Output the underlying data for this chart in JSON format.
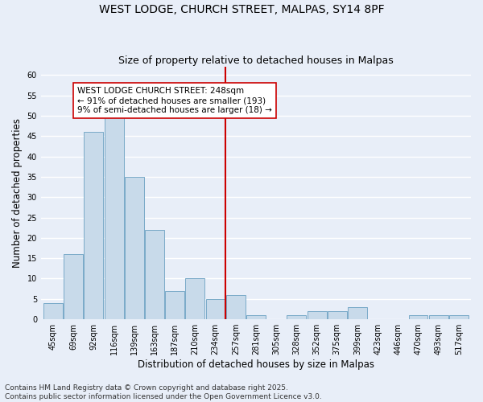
{
  "title1": "WEST LODGE, CHURCH STREET, MALPAS, SY14 8PF",
  "title2": "Size of property relative to detached houses in Malpas",
  "xlabel": "Distribution of detached houses by size in Malpas",
  "ylabel": "Number of detached properties",
  "bin_labels": [
    "45sqm",
    "69sqm",
    "92sqm",
    "116sqm",
    "139sqm",
    "163sqm",
    "187sqm",
    "210sqm",
    "234sqm",
    "257sqm",
    "281sqm",
    "305sqm",
    "328sqm",
    "352sqm",
    "375sqm",
    "399sqm",
    "423sqm",
    "446sqm",
    "470sqm",
    "493sqm",
    "517sqm"
  ],
  "values": [
    4,
    16,
    46,
    50,
    35,
    22,
    7,
    10,
    5,
    6,
    1,
    0,
    1,
    2,
    2,
    3,
    0,
    0,
    1,
    1,
    1
  ],
  "bar_color": "#c8daea",
  "bar_edge_color": "#7aaac8",
  "redline_x": 8.5,
  "annotation_text": "WEST LODGE CHURCH STREET: 248sqm\n← 91% of detached houses are smaller (193)\n9% of semi-detached houses are larger (18) →",
  "annotation_box_color": "#ffffff",
  "annotation_box_edge": "#cc0000",
  "ylim": [
    0,
    62
  ],
  "yticks": [
    0,
    5,
    10,
    15,
    20,
    25,
    30,
    35,
    40,
    45,
    50,
    55,
    60
  ],
  "background_color": "#e8eef8",
  "plot_bg_color": "#e8eef8",
  "grid_color": "#ffffff",
  "footer": "Contains HM Land Registry data © Crown copyright and database right 2025.\nContains public sector information licensed under the Open Government Licence v3.0.",
  "title_fontsize": 10,
  "subtitle_fontsize": 9,
  "axis_label_fontsize": 8.5,
  "tick_fontsize": 7,
  "footer_fontsize": 6.5,
  "annot_fontsize": 7.5
}
